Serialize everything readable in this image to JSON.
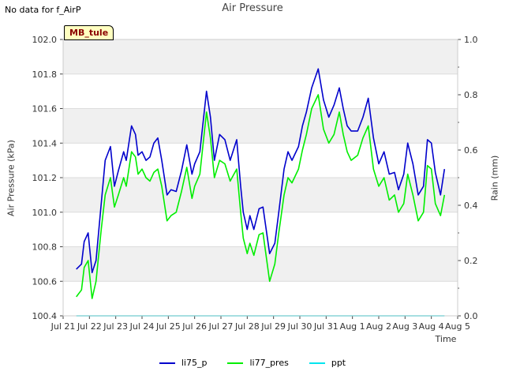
{
  "note": "No data for f_AirP",
  "badge": "MB_tule",
  "chart_data": {
    "type": "line",
    "title": "Air Pressure",
    "xlabel": "Time",
    "ylabel": "Air Pressure (kPa)",
    "y2label": "Rain (mm)",
    "x_ticks": [
      "Jul 21",
      "Jul 22",
      "Jul 23",
      "Jul 24",
      "Jul 25",
      "Jul 26",
      "Jul 27",
      "Jul 28",
      "Jul 29",
      "Jul 30",
      "Jul 31",
      "Aug 1",
      "Aug 2",
      "Aug 3",
      "Aug 4",
      "Aug 5"
    ],
    "xlim": [
      0,
      15
    ],
    "ylim": [
      100.4,
      102.0
    ],
    "y_ticks": [
      "100.4",
      "100.6",
      "100.8",
      "101.0",
      "101.2",
      "101.4",
      "101.6",
      "101.8",
      "102.0"
    ],
    "y2lim": [
      0.0,
      1.0
    ],
    "y2_ticks": [
      "0.0",
      "0.2",
      "0.4",
      "0.6",
      "0.8",
      "1.0"
    ],
    "grid": true,
    "legend": "bottom-center",
    "colors": {
      "band": "#f0f0f0",
      "li75_p": "#0000cc",
      "li77_pres": "#00ee00",
      "ppt": "#00e5ee"
    },
    "series": [
      {
        "name": "li75_p",
        "axis": "left",
        "x": [
          0.5,
          0.7,
          0.8,
          0.95,
          1.1,
          1.25,
          1.45,
          1.6,
          1.8,
          1.95,
          2.1,
          2.3,
          2.4,
          2.6,
          2.75,
          2.85,
          3.0,
          3.15,
          3.3,
          3.45,
          3.6,
          3.75,
          3.95,
          4.1,
          4.3,
          4.5,
          4.7,
          4.9,
          5.0,
          5.2,
          5.45,
          5.6,
          5.75,
          5.95,
          6.15,
          6.35,
          6.6,
          6.75,
          6.85,
          7.0,
          7.1,
          7.25,
          7.45,
          7.6,
          7.85,
          8.05,
          8.2,
          8.4,
          8.55,
          8.7,
          8.95,
          9.1,
          9.25,
          9.45,
          9.7,
          9.9,
          10.1,
          10.3,
          10.5,
          10.65,
          10.8,
          10.95,
          11.2,
          11.4,
          11.6,
          11.8,
          12.0,
          12.2,
          12.4,
          12.6,
          12.75,
          12.95,
          13.1,
          13.3,
          13.5,
          13.7,
          13.85,
          14.0,
          14.15,
          14.35,
          14.5
        ],
        "values": [
          100.67,
          100.7,
          100.83,
          100.88,
          100.65,
          100.72,
          101.05,
          101.3,
          101.38,
          101.15,
          101.24,
          101.35,
          101.3,
          101.5,
          101.45,
          101.33,
          101.35,
          101.3,
          101.32,
          101.4,
          101.43,
          101.3,
          101.1,
          101.13,
          101.12,
          101.24,
          101.39,
          101.22,
          101.28,
          101.35,
          101.7,
          101.55,
          101.3,
          101.45,
          101.42,
          101.3,
          101.42,
          101.15,
          101.0,
          100.9,
          100.98,
          100.9,
          101.02,
          101.03,
          100.76,
          100.82,
          101.0,
          101.25,
          101.35,
          101.3,
          101.38,
          101.5,
          101.58,
          101.72,
          101.83,
          101.65,
          101.55,
          101.62,
          101.72,
          101.6,
          101.5,
          101.47,
          101.47,
          101.55,
          101.66,
          101.43,
          101.28,
          101.35,
          101.22,
          101.23,
          101.13,
          101.22,
          101.4,
          101.28,
          101.1,
          101.15,
          101.42,
          101.4,
          101.23,
          101.1,
          101.25
        ]
      },
      {
        "name": "li77_pres",
        "axis": "left",
        "x": [
          0.5,
          0.7,
          0.8,
          0.95,
          1.1,
          1.25,
          1.45,
          1.6,
          1.8,
          1.95,
          2.1,
          2.3,
          2.4,
          2.6,
          2.75,
          2.85,
          3.0,
          3.15,
          3.3,
          3.45,
          3.6,
          3.75,
          3.95,
          4.1,
          4.3,
          4.5,
          4.7,
          4.9,
          5.0,
          5.2,
          5.45,
          5.6,
          5.75,
          5.95,
          6.15,
          6.35,
          6.6,
          6.75,
          6.85,
          7.0,
          7.1,
          7.25,
          7.45,
          7.6,
          7.85,
          8.05,
          8.2,
          8.4,
          8.55,
          8.7,
          8.95,
          9.1,
          9.25,
          9.45,
          9.7,
          9.9,
          10.1,
          10.3,
          10.5,
          10.65,
          10.8,
          10.95,
          11.2,
          11.4,
          11.6,
          11.8,
          12.0,
          12.2,
          12.4,
          12.6,
          12.75,
          12.95,
          13.1,
          13.3,
          13.5,
          13.7,
          13.85,
          14.0,
          14.15,
          14.35,
          14.5
        ],
        "values": [
          100.51,
          100.55,
          100.68,
          100.72,
          100.5,
          100.6,
          100.9,
          101.1,
          101.2,
          101.03,
          101.1,
          101.2,
          101.15,
          101.35,
          101.32,
          101.22,
          101.25,
          101.2,
          101.18,
          101.23,
          101.25,
          101.15,
          100.95,
          100.98,
          101.0,
          101.12,
          101.26,
          101.08,
          101.15,
          101.22,
          101.58,
          101.43,
          101.2,
          101.3,
          101.28,
          101.18,
          101.25,
          101.0,
          100.85,
          100.76,
          100.82,
          100.75,
          100.87,
          100.88,
          100.6,
          100.7,
          100.88,
          101.1,
          101.2,
          101.17,
          101.25,
          101.36,
          101.45,
          101.6,
          101.68,
          101.48,
          101.4,
          101.45,
          101.58,
          101.45,
          101.35,
          101.3,
          101.33,
          101.43,
          101.5,
          101.25,
          101.15,
          101.2,
          101.07,
          101.1,
          101.0,
          101.05,
          101.22,
          101.1,
          100.95,
          101.0,
          101.27,
          101.25,
          101.05,
          100.98,
          101.1
        ]
      },
      {
        "name": "ppt",
        "axis": "right",
        "x": [
          0.5,
          14.5
        ],
        "values": [
          0.0,
          0.0
        ]
      }
    ]
  }
}
